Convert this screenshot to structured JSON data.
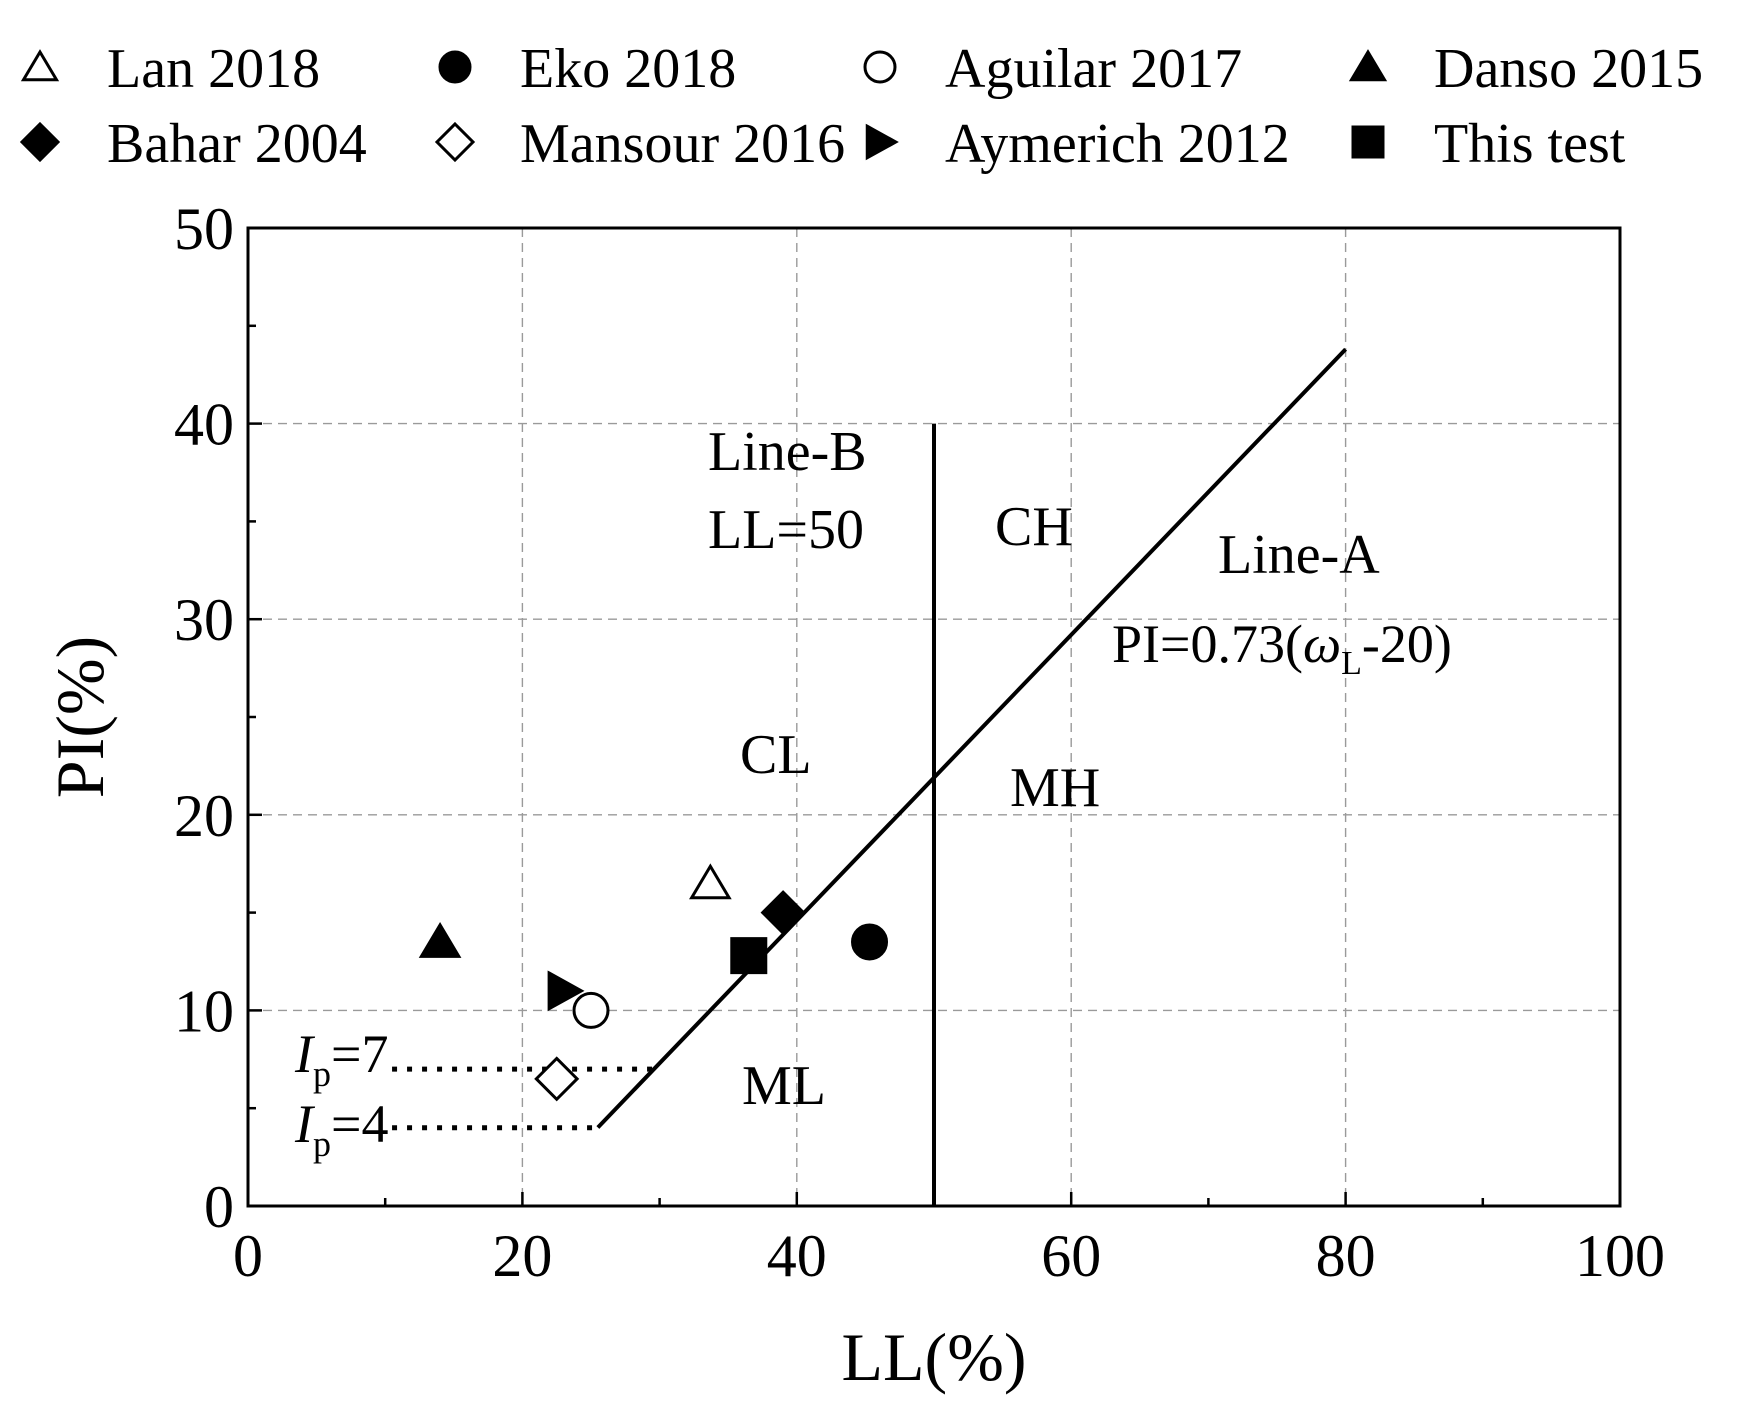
{
  "chart_data": {
    "type": "scatter",
    "xlabel": "LL(%)",
    "ylabel": "PI(%)",
    "xlim": [
      0,
      100
    ],
    "ylim": [
      0,
      50
    ],
    "x_ticks": [
      "0",
      "20",
      "40",
      "60",
      "80",
      "100"
    ],
    "y_ticks": [
      "0",
      "10",
      "20",
      "30",
      "40",
      "50"
    ],
    "grid": true,
    "legend_position": "top",
    "series": [
      {
        "name": "Lan 2018",
        "marker": "triangle-up",
        "filled": false,
        "x": [
          33.7
        ],
        "y": [
          16.5
        ]
      },
      {
        "name": "Eko 2018",
        "marker": "circle",
        "filled": true,
        "x": [
          45.3
        ],
        "y": [
          13.5
        ]
      },
      {
        "name": "Aguilar 2017",
        "marker": "circle",
        "filled": false,
        "x": [
          25.0
        ],
        "y": [
          10.0
        ]
      },
      {
        "name": "Danso 2015",
        "marker": "triangle-up",
        "filled": true,
        "x": [
          14.0
        ],
        "y": [
          13.5
        ]
      },
      {
        "name": "Bahar 2004",
        "marker": "diamond",
        "filled": true,
        "x": [
          39.0
        ],
        "y": [
          15.0
        ]
      },
      {
        "name": "Mansour 2016",
        "marker": "diamond",
        "filled": false,
        "x": [
          22.5
        ],
        "y": [
          6.5
        ]
      },
      {
        "name": "Aymerich 2012",
        "marker": "triangle-right",
        "filled": true,
        "x": [
          23.0
        ],
        "y": [
          11.0
        ]
      },
      {
        "name": "This test",
        "marker": "square",
        "filled": true,
        "x": [
          36.5
        ],
        "y": [
          12.8
        ]
      }
    ],
    "lines": {
      "line_a": {
        "x1": 25.5,
        "x2": 80,
        "slope": 0.73,
        "offset": 20
      },
      "line_b": {
        "x": 50,
        "y1": 0,
        "y2": 40
      },
      "ip7": {
        "y": 7,
        "x1": 10.5,
        "x2": 29.5
      },
      "ip4": {
        "y": 4,
        "x1": 10.5,
        "x2": 25.5
      }
    },
    "annotations": {
      "line_b_title": "Line-B",
      "line_b_eq": "LL=50",
      "line_a_title": "Line-A",
      "line_a_eq_prefix": "PI=0.73(",
      "omega": "ω",
      "omega_sub": "L",
      "line_a_eq_suffix": "-20)",
      "region_ch": "CH",
      "region_cl": "CL",
      "region_mh": "MH",
      "region_ml": "ML",
      "ip_symbol": "I",
      "ip_sub": "p",
      "ip7_value": "=7",
      "ip4_value": "=4"
    }
  }
}
